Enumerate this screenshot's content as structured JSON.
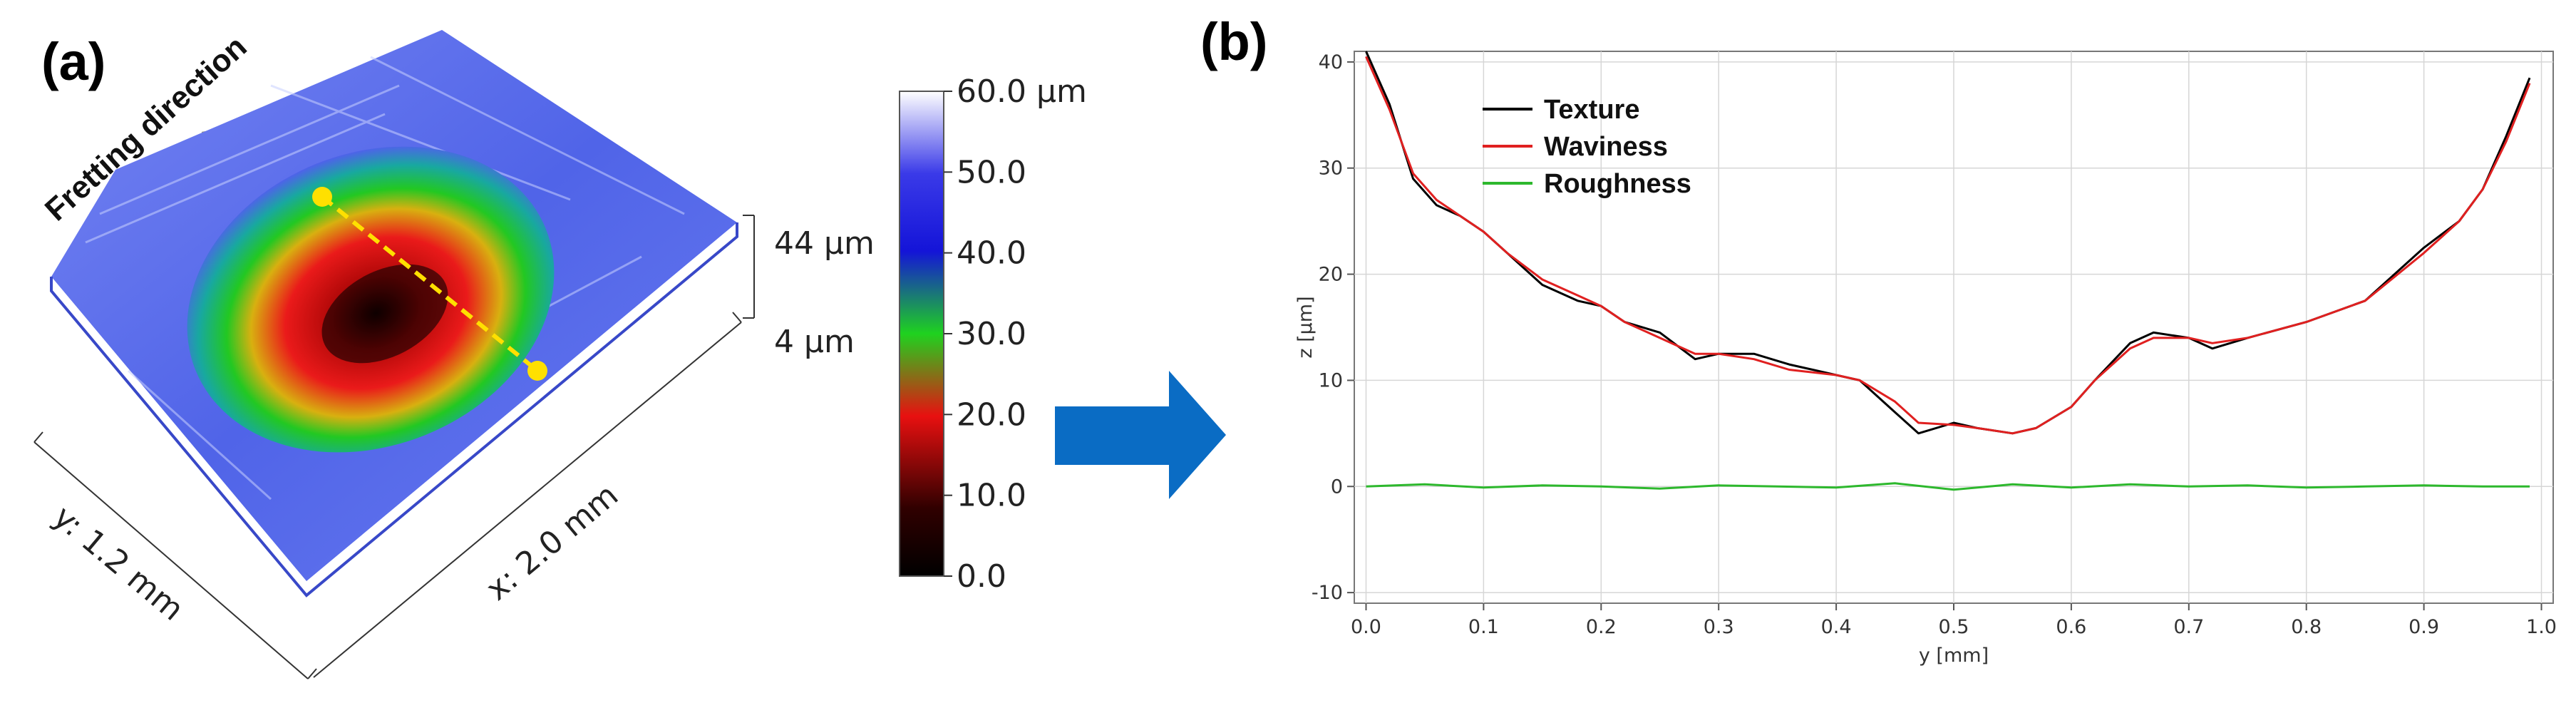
{
  "panel_a": {
    "label": "(a)",
    "direction_label": "Fretting direction",
    "x_dim_label": "x: 2.0 mm",
    "y_dim_label": "y: 1.2 mm",
    "scale_top_label": "44 µm",
    "scale_bottom_label": "4 µm",
    "colorbar": {
      "tick_labels": [
        "60.0 µm",
        "50.0",
        "40.0",
        "30.0",
        "20.0",
        "10.0",
        "0.0"
      ],
      "stops": [
        "#ffffff",
        "#3a3ae8",
        "#1414d8",
        "#1fd21f",
        "#e81010",
        "#300000",
        "#000000"
      ]
    },
    "colors": {
      "surface": "#5a6ff0",
      "marker": "#ffe000",
      "arrow": "#d9dccc"
    }
  },
  "connector": {
    "arrow_color": "#0a6cc4"
  },
  "chart_data": {
    "type": "line",
    "label": "(b)",
    "xlabel": "y [mm]",
    "ylabel": "z [µm]",
    "xlim": [
      -0.01,
      1.01
    ],
    "ylim": [
      -11,
      41
    ],
    "xticks": [
      0.0,
      0.1,
      0.2,
      0.3,
      0.4,
      0.5,
      0.6,
      0.7,
      0.8,
      0.9,
      1.0
    ],
    "xtick_labels": [
      "0.0",
      "0.1",
      "0.2",
      "0.3",
      "0.4",
      "0.5",
      "0.6",
      "0.7",
      "0.8",
      "0.9",
      "1.0"
    ],
    "yticks": [
      -10,
      0,
      10,
      20,
      30,
      40
    ],
    "ytick_labels": [
      "-10",
      "0",
      "10",
      "20",
      "30",
      "40"
    ],
    "grid": true,
    "legend_position": "top-left",
    "series": [
      {
        "name": "Texture",
        "color": "#000000",
        "x": [
          0.0,
          0.02,
          0.04,
          0.06,
          0.08,
          0.1,
          0.12,
          0.15,
          0.18,
          0.2,
          0.22,
          0.25,
          0.28,
          0.3,
          0.33,
          0.36,
          0.4,
          0.42,
          0.45,
          0.47,
          0.5,
          0.52,
          0.55,
          0.57,
          0.6,
          0.62,
          0.65,
          0.67,
          0.7,
          0.72,
          0.75,
          0.8,
          0.85,
          0.9,
          0.93,
          0.95,
          0.97,
          0.99
        ],
        "y": [
          41.0,
          36.0,
          29.0,
          26.5,
          25.5,
          24.0,
          22.0,
          19.0,
          17.5,
          17.0,
          15.5,
          14.5,
          12.0,
          12.5,
          12.5,
          11.5,
          10.5,
          10.0,
          7.0,
          5.0,
          6.0,
          5.5,
          5.0,
          5.5,
          7.5,
          10.0,
          13.5,
          14.5,
          14.0,
          13.0,
          14.0,
          15.5,
          17.5,
          22.5,
          25.0,
          28.0,
          33.0,
          38.5
        ]
      },
      {
        "name": "Waviness",
        "color": "#e02020",
        "x": [
          0.0,
          0.02,
          0.04,
          0.06,
          0.08,
          0.1,
          0.12,
          0.15,
          0.18,
          0.2,
          0.22,
          0.25,
          0.28,
          0.3,
          0.33,
          0.36,
          0.4,
          0.42,
          0.45,
          0.47,
          0.5,
          0.52,
          0.55,
          0.57,
          0.6,
          0.62,
          0.65,
          0.67,
          0.7,
          0.72,
          0.75,
          0.8,
          0.85,
          0.9,
          0.93,
          0.95,
          0.97,
          0.99
        ],
        "y": [
          40.5,
          35.5,
          29.5,
          27.0,
          25.5,
          24.0,
          22.0,
          19.5,
          18.0,
          17.0,
          15.5,
          14.0,
          12.5,
          12.5,
          12.0,
          11.0,
          10.5,
          10.0,
          8.0,
          6.0,
          5.8,
          5.5,
          5.0,
          5.5,
          7.5,
          10.0,
          13.0,
          14.0,
          14.0,
          13.5,
          14.0,
          15.5,
          17.5,
          22.0,
          25.0,
          28.0,
          32.5,
          38.0
        ]
      },
      {
        "name": "Roughness",
        "color": "#2db82d",
        "x": [
          0.0,
          0.05,
          0.1,
          0.15,
          0.2,
          0.25,
          0.3,
          0.35,
          0.4,
          0.45,
          0.5,
          0.55,
          0.6,
          0.65,
          0.7,
          0.75,
          0.8,
          0.85,
          0.9,
          0.95,
          0.99
        ],
        "y": [
          0.0,
          0.2,
          -0.1,
          0.1,
          0.0,
          -0.2,
          0.1,
          0.0,
          -0.1,
          0.3,
          -0.3,
          0.2,
          -0.1,
          0.2,
          0.0,
          0.1,
          -0.1,
          0.0,
          0.1,
          0.0,
          0.0
        ]
      }
    ]
  }
}
